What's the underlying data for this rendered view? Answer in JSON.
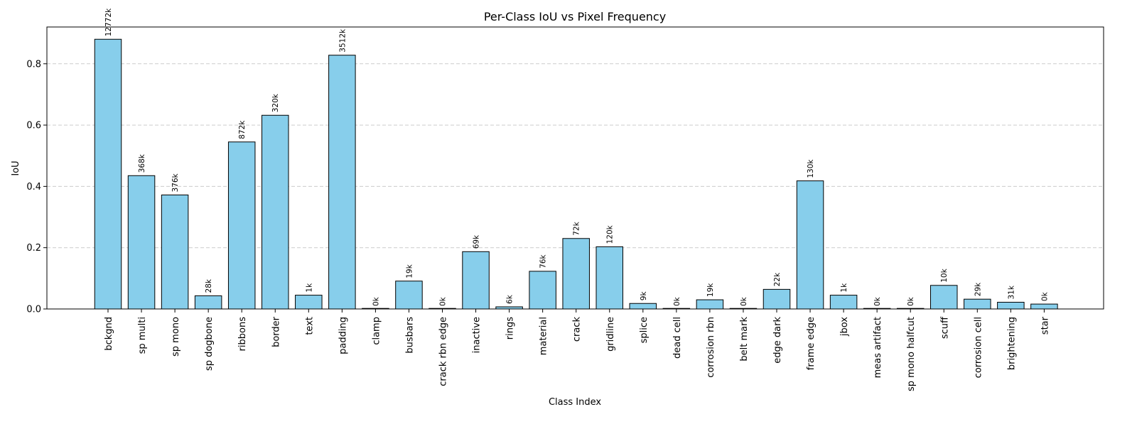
{
  "chart_data": {
    "type": "bar",
    "title": "Per-Class IoU vs Pixel Frequency",
    "xlabel": "Class Index",
    "ylabel": "IoU",
    "ylim": [
      0,
      0.92
    ],
    "yticks": [
      "0.0",
      "0.2",
      "0.4",
      "0.6",
      "0.8"
    ],
    "grid": "horizontal dashed",
    "categories": [
      "bckgnd",
      "sp multi",
      "sp mono",
      "sp dogbone",
      "ribbons",
      "border",
      "text",
      "padding",
      "clamp",
      "busbars",
      "crack rbn edge",
      "inactive",
      "rings",
      "material",
      "crack",
      "gridline",
      "splice",
      "dead cell",
      "corrosion rbn",
      "belt mark",
      "edge dark",
      "frame edge",
      "jbox",
      "meas artifact",
      "sp mono halfcut",
      "scuff",
      "corrosion cell",
      "brightening",
      "star"
    ],
    "values": [
      0.88,
      0.435,
      0.372,
      0.043,
      0.545,
      0.632,
      0.045,
      0.828,
      0.0,
      0.091,
      0.0,
      0.187,
      0.007,
      0.123,
      0.23,
      0.203,
      0.018,
      0.0,
      0.03,
      0.0,
      0.064,
      0.418,
      0.045,
      0.0,
      0.0,
      0.077,
      0.032,
      0.022,
      0.016
    ],
    "bar_labels": [
      "12772k",
      "368k",
      "376k",
      "28k",
      "872k",
      "320k",
      "1k",
      "3512k",
      "0k",
      "19k",
      "0k",
      "69k",
      "6k",
      "76k",
      "72k",
      "120k",
      "9k",
      "0k",
      "19k",
      "0k",
      "22k",
      "130k",
      "1k",
      "0k",
      "0k",
      "10k",
      "29k",
      "31k",
      "0k"
    ],
    "colors": {
      "bar_fill": "#87ceeb",
      "bar_edge": "#000000",
      "grid": "#cccccc"
    }
  }
}
